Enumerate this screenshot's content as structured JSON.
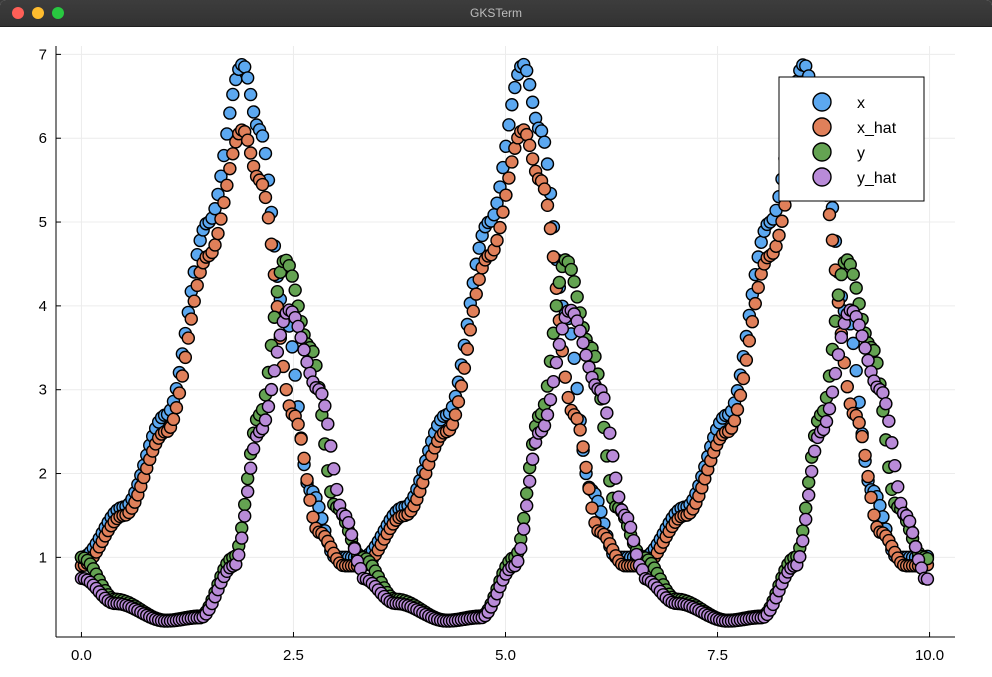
{
  "window": {
    "title": "GKSTerm"
  },
  "colors": {
    "x": "#5ca8f0",
    "x_hat": "#e0805a",
    "y": "#64a352",
    "y_hat": "#b98bd8"
  },
  "chart_data": {
    "type": "scatter",
    "title": "",
    "xlabel": "",
    "ylabel": "",
    "xlim": [
      -0.3,
      10.3
    ],
    "ylim": [
      0.05,
      7.1
    ],
    "xticks": [
      0.0,
      2.5,
      5.0,
      7.5,
      10.0
    ],
    "xtick_labels": [
      "0.0",
      "2.5",
      "5.0",
      "7.5",
      "10.0"
    ],
    "yticks": [
      1,
      2,
      3,
      4,
      5,
      6,
      7
    ],
    "ytick_labels": [
      "1",
      "2",
      "3",
      "4",
      "5",
      "6",
      "7"
    ],
    "grid": true,
    "legend_position": "top-right",
    "period": 3.31,
    "series": [
      {
        "name": "x",
        "color": "#5ca8f0",
        "keypoints": [
          [
            0,
            1.0
          ],
          [
            0.5,
            1.6
          ],
          [
            1.0,
            2.7
          ],
          [
            1.5,
            5.0
          ],
          [
            1.9,
            6.88
          ],
          [
            2.1,
            6.1
          ],
          [
            2.4,
            3.9
          ],
          [
            2.7,
            1.8
          ],
          [
            3.0,
            1.0
          ],
          [
            3.31,
            1.0
          ]
        ]
      },
      {
        "name": "x_hat",
        "color": "#e0805a",
        "keypoints": [
          [
            0,
            0.9
          ],
          [
            0.5,
            1.5
          ],
          [
            1.0,
            2.5
          ],
          [
            1.5,
            4.6
          ],
          [
            1.9,
            6.1
          ],
          [
            2.1,
            5.5
          ],
          [
            2.5,
            2.7
          ],
          [
            2.8,
            1.3
          ],
          [
            3.1,
            0.9
          ],
          [
            3.31,
            0.9
          ]
        ]
      },
      {
        "name": "y",
        "color": "#64a352",
        "keypoints": [
          [
            0,
            1.0
          ],
          [
            0.4,
            0.5
          ],
          [
            1.0,
            0.25
          ],
          [
            1.4,
            0.3
          ],
          [
            1.8,
            1.0
          ],
          [
            2.1,
            2.7
          ],
          [
            2.4,
            4.55
          ],
          [
            2.7,
            3.5
          ],
          [
            3.0,
            1.6
          ],
          [
            3.31,
            1.0
          ]
        ]
      },
      {
        "name": "y_hat",
        "color": "#b98bd8",
        "keypoints": [
          [
            0,
            0.75
          ],
          [
            0.4,
            0.45
          ],
          [
            1.0,
            0.24
          ],
          [
            1.4,
            0.28
          ],
          [
            1.8,
            0.9
          ],
          [
            2.1,
            2.5
          ],
          [
            2.45,
            3.95
          ],
          [
            2.8,
            3.0
          ],
          [
            3.1,
            1.5
          ],
          [
            3.31,
            0.85
          ]
        ]
      }
    ]
  }
}
